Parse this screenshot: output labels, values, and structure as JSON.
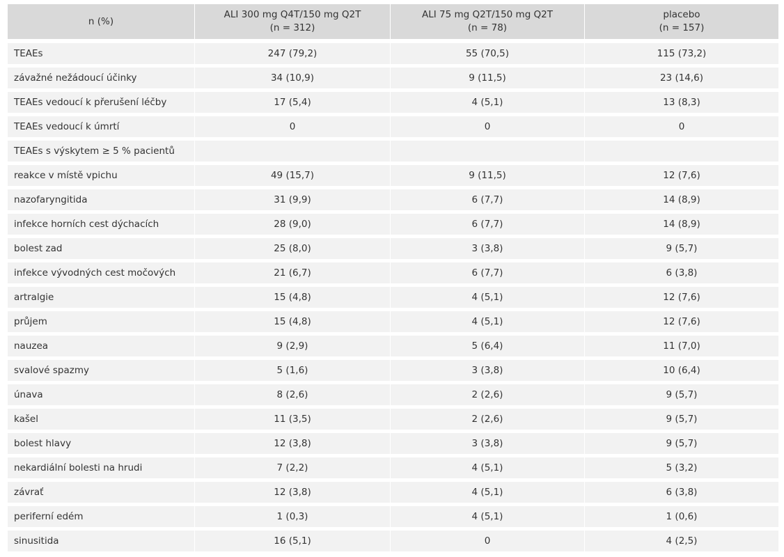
{
  "header": {
    "col0": "n (%)",
    "col1_line1": "ALI 300 mg Q4T/150 mg Q2T",
    "col1_line2": "(n = 312)",
    "col2_line1": "ALI 75 mg Q2T/150 mg Q2T",
    "col2_line2": "(n = 78)",
    "col3_line1": "placebo",
    "col3_line2": "(n = 157)"
  },
  "rows": [
    {
      "label": "TEAEs",
      "v1": "247 (79,2)",
      "v2": "55 (70,5)",
      "v3": "115 (73,2)"
    },
    {
      "label": "závažné nežádoucí účinky",
      "v1": "34 (10,9)",
      "v2": "9 (11,5)",
      "v3": "23 (14,6)"
    },
    {
      "label": "TEAEs vedoucí k přerušení léčby",
      "v1": "17 (5,4)",
      "v2": "4 (5,1)",
      "v3": "13 (8,3)"
    },
    {
      "label": "TEAEs vedoucí k úmrtí",
      "v1": "0",
      "v2": "0",
      "v3": "0"
    },
    {
      "label": "TEAEs s výskytem ≥ 5 % pacientů",
      "v1": "",
      "v2": "",
      "v3": ""
    },
    {
      "label": "reakce v místě vpichu",
      "v1": "49 (15,7)",
      "v2": "9 (11,5)",
      "v3": "12 (7,6)"
    },
    {
      "label": "nazofaryngitida",
      "v1": "31 (9,9)",
      "v2": "6 (7,7)",
      "v3": "14 (8,9)"
    },
    {
      "label": "infekce horních cest dýchacích",
      "v1": "28 (9,0)",
      "v2": "6 (7,7)",
      "v3": "14 (8,9)"
    },
    {
      "label": "bolest zad",
      "v1": "25 (8,0)",
      "v2": "3 (3,8)",
      "v3": "9 (5,7)"
    },
    {
      "label": "infekce vývodných cest močových",
      "v1": "21 (6,7)",
      "v2": "6 (7,7)",
      "v3": "6 (3,8)"
    },
    {
      "label": "artralgie",
      "v1": "15 (4,8)",
      "v2": "4 (5,1)",
      "v3": "12 (7,6)"
    },
    {
      "label": "průjem",
      "v1": "15 (4,8)",
      "v2": "4 (5,1)",
      "v3": "12 (7,6)"
    },
    {
      "label": "nauzea",
      "v1": "9 (2,9)",
      "v2": "5 (6,4)",
      "v3": "11 (7,0)"
    },
    {
      "label": "svalové spazmy",
      "v1": "5 (1,6)",
      "v2": "3 (3,8)",
      "v3": "10 (6,4)"
    },
    {
      "label": "únava",
      "v1": "8 (2,6)",
      "v2": "2 (2,6)",
      "v3": "9 (5,7)"
    },
    {
      "label": "kašel",
      "v1": "11 (3,5)",
      "v2": "2 (2,6)",
      "v3": "9 (5,7)"
    },
    {
      "label": "bolest hlavy",
      "v1": "12 (3,8)",
      "v2": "3 (3,8)",
      "v3": "9 (5,7)"
    },
    {
      "label": "nekardiální bolesti na hrudi",
      "v1": "7 (2,2)",
      "v2": "4 (5,1)",
      "v3": "5 (3,2)"
    },
    {
      "label": "závrať",
      "v1": "12 (3,8)",
      "v2": "4 (5,1)",
      "v3": "6 (3,8)"
    },
    {
      "label": "periferní edém",
      "v1": "1 (0,3)",
      "v2": "4 (5,1)",
      "v3": "1 (0,6)"
    },
    {
      "label": "sinusitida",
      "v1": "16 (5,1)",
      "v2": "0",
      "v3": "4 (2,5)"
    }
  ]
}
